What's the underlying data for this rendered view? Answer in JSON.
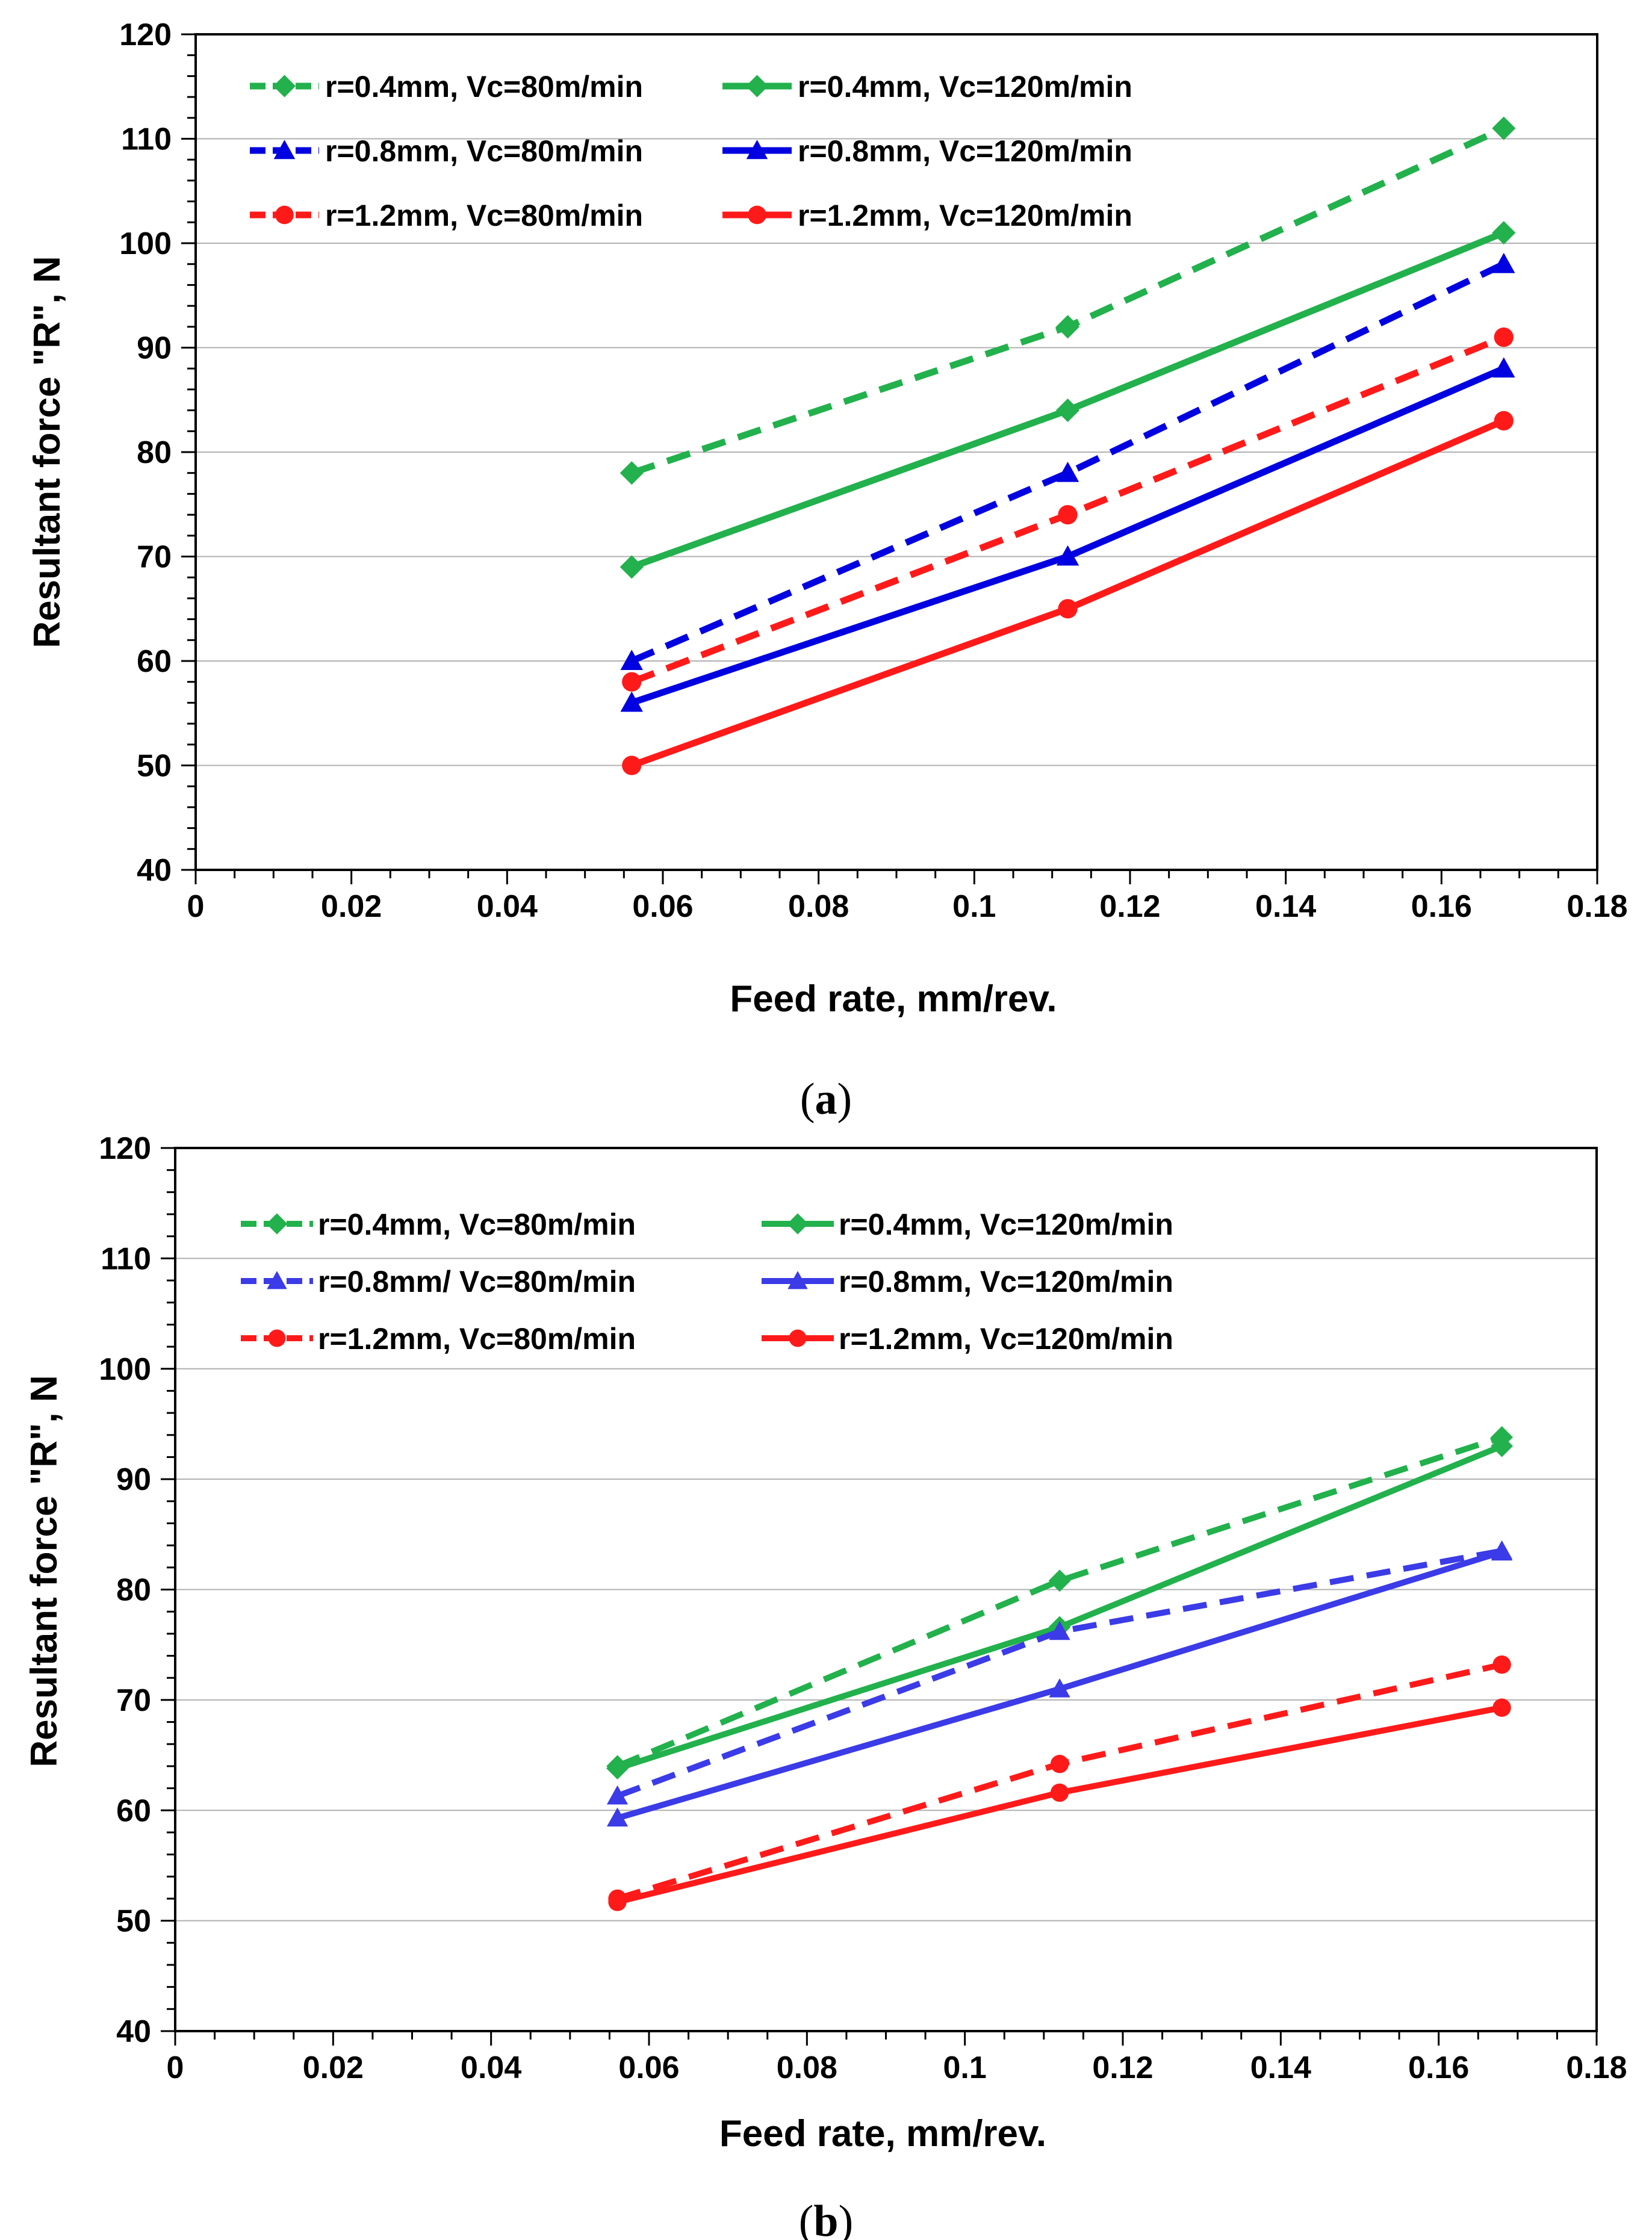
{
  "figure": {
    "panels": [
      {
        "caption_open": "(",
        "caption_letter": "a",
        "caption_close": ")",
        "chart_data": {
          "type": "line",
          "title": "",
          "xlabel": "Feed rate, mm/rev.",
          "ylabel": "Resultant force \"R\", N",
          "xlim": [
            0,
            0.18
          ],
          "ylim": [
            40,
            120
          ],
          "x_ticks": [
            "0",
            "0.02",
            "0.04",
            "0.06",
            "0.08",
            "0.1",
            "0.12",
            "0.14",
            "0.16",
            "0.18"
          ],
          "y_ticks": [
            "40",
            "50",
            "60",
            "70",
            "80",
            "90",
            "100",
            "110",
            "120"
          ],
          "grid": "horizontal",
          "legend_position": "top-left",
          "x": [
            0.056,
            0.112,
            0.168
          ],
          "series": [
            {
              "name": "r=0.4mm, Vc=80m/min",
              "values": [
                78,
                92,
                111
              ],
              "color": "#22b14c",
              "dash": "dashed",
              "marker": "diamond"
            },
            {
              "name": "r=0.4mm, Vc=120m/min",
              "values": [
                69,
                84,
                101
              ],
              "color": "#22b14c",
              "dash": "solid",
              "marker": "diamond"
            },
            {
              "name": "r=0.8mm, Vc=80m/min",
              "values": [
                60,
                78,
                98
              ],
              "color": "#0000e0",
              "dash": "dashed",
              "marker": "triangle"
            },
            {
              "name": "r=0.8mm, Vc=120m/min",
              "values": [
                56,
                70,
                88
              ],
              "color": "#0000e0",
              "dash": "solid",
              "marker": "triangle"
            },
            {
              "name": "r=1.2mm, Vc=80m/min",
              "values": [
                58,
                74,
                91
              ],
              "color": "#ff1a1a",
              "dash": "dashed",
              "marker": "circle"
            },
            {
              "name": "r=1.2mm, Vc=120m/min",
              "values": [
                50,
                65,
                83
              ],
              "color": "#ff1a1a",
              "dash": "solid",
              "marker": "circle"
            }
          ]
        }
      },
      {
        "caption_open": "(",
        "caption_letter": "b",
        "caption_close": ")",
        "chart_data": {
          "type": "line",
          "title": "",
          "xlabel": "Feed rate, mm/rev.",
          "ylabel": "Resultant force \"R\", N",
          "xlim": [
            0,
            0.18
          ],
          "ylim": [
            40,
            120
          ],
          "x_ticks": [
            "0",
            "0.02",
            "0.04",
            "0.06",
            "0.08",
            "0.1",
            "0.12",
            "0.14",
            "0.16",
            "0.18"
          ],
          "y_ticks": [
            "40",
            "50",
            "60",
            "70",
            "80",
            "90",
            "100",
            "110",
            "120"
          ],
          "grid": "horizontal",
          "legend_position": "top-left",
          "x": [
            0.056,
            0.112,
            0.168
          ],
          "series": [
            {
              "name": "r=0.4mm, Vc=80m/min",
              "values": [
                64,
                80.8,
                93.8
              ],
              "color": "#22b14c",
              "dash": "dashed",
              "marker": "diamond"
            },
            {
              "name": "r=0.4mm, Vc=120m/min",
              "values": [
                63.8,
                76.6,
                93
              ],
              "color": "#22b14c",
              "dash": "solid",
              "marker": "diamond"
            },
            {
              "name": "r=0.8mm/ Vc=80m/min",
              "values": [
                61.3,
                76.2,
                83.5
              ],
              "color": "#3b3be8",
              "dash": "dashed",
              "marker": "triangle"
            },
            {
              "name": "r=0.8mm, Vc=120m/min",
              "values": [
                59.3,
                71,
                83.4
              ],
              "color": "#3b3be8",
              "dash": "solid",
              "marker": "triangle"
            },
            {
              "name": "r=1.2mm, Vc=80m/min",
              "values": [
                52,
                64.2,
                73.2
              ],
              "color": "#ff1a1a",
              "dash": "dashed",
              "marker": "circle"
            },
            {
              "name": "r=1.2mm, Vc=120m/min",
              "values": [
                51.7,
                61.6,
                69.3
              ],
              "color": "#ff1a1a",
              "dash": "solid",
              "marker": "circle"
            }
          ]
        }
      }
    ]
  }
}
